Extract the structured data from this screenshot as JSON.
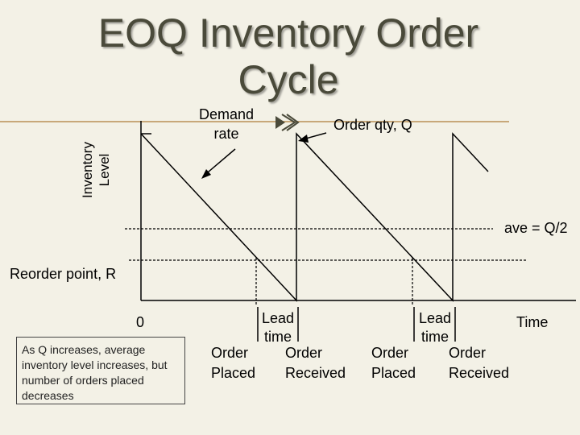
{
  "slide": {
    "title_line1": "EOQ Inventory Order",
    "title_line2": "Cycle",
    "bullet_symbol": "",
    "y_axis_label_line1": "Inventory",
    "y_axis_label_line2": "Level",
    "demand_rate_line1": "Demand",
    "demand_rate_line2": "rate",
    "order_qty": "Order qty, Q",
    "average": "ave = Q/2",
    "reorder_point": "Reorder point, R",
    "origin": "0",
    "time": "Time",
    "lead_time_1_line1": "Lead",
    "lead_time_1_line2": "time",
    "lead_time_2_line1": "Lead",
    "lead_time_2_line2": "time",
    "order_placed_1_line1": "Order",
    "order_placed_1_line2": "Placed",
    "order_received_1_line1": "Order",
    "order_received_1_line2": "Received",
    "order_placed_2_line1": "Order",
    "order_placed_2_line2": "Placed",
    "order_received_2_line1": "Order",
    "order_received_2_line2": "Received",
    "note": "As Q increases, average inventory level increases, but number of orders placed decreases"
  },
  "colors": {
    "background": "#f3f1e6",
    "title_text": "#4a4a3a",
    "accent_line": "#c8a87a"
  }
}
